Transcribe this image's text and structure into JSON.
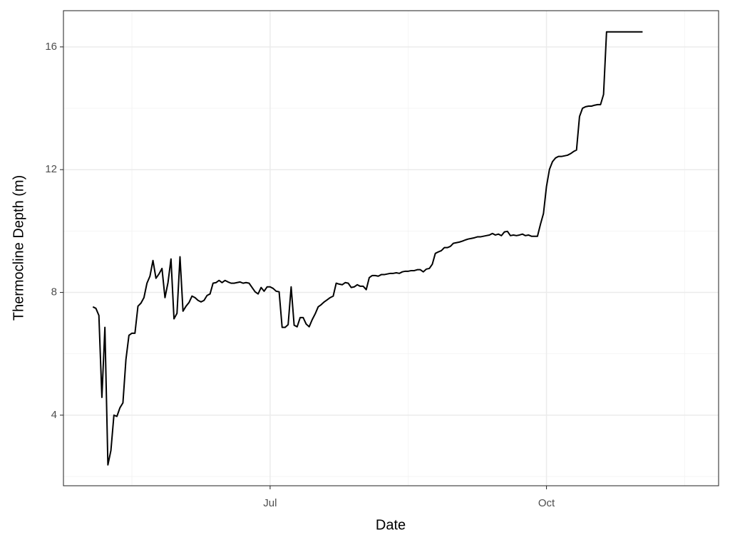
{
  "chart_data": {
    "type": "line",
    "x_label": "Date",
    "y_label": "Thermocline Depth (m)",
    "x": [
      123,
      124,
      125,
      126,
      127,
      128,
      129,
      130,
      131,
      132,
      133,
      134,
      135,
      136,
      137,
      138,
      139,
      140,
      141,
      142,
      143,
      144,
      145,
      146,
      147,
      148,
      149,
      150,
      151,
      152,
      153,
      154,
      155,
      156,
      157,
      158,
      159,
      160,
      161,
      162,
      163,
      164,
      165,
      166,
      167,
      168,
      169,
      170,
      171,
      172,
      173,
      174,
      175,
      176,
      177,
      178,
      179,
      180,
      181,
      182,
      183,
      184,
      185,
      186,
      187,
      188,
      189,
      190,
      191,
      192,
      193,
      194,
      195,
      196,
      197,
      198,
      199,
      200,
      201,
      202,
      203,
      204,
      205,
      206,
      207,
      208,
      209,
      210,
      211,
      212,
      213,
      214,
      215,
      216,
      217,
      218,
      219,
      220,
      221,
      222,
      223,
      224,
      225,
      226,
      227,
      228,
      229,
      230,
      231,
      232,
      233,
      234,
      235,
      236,
      237,
      238,
      239,
      240,
      241,
      242,
      243,
      244,
      245,
      246,
      247,
      248,
      249,
      250,
      251,
      252,
      253,
      254,
      255,
      256,
      257,
      258,
      259,
      260,
      261,
      262,
      263,
      264,
      265,
      266,
      267,
      268,
      269,
      270,
      271,
      272,
      273,
      274,
      275,
      276,
      277,
      278,
      279,
      280,
      281,
      282,
      283,
      284,
      285,
      286,
      287,
      288,
      289,
      290,
      291,
      292,
      293,
      294,
      295,
      296,
      297,
      298,
      299,
      300,
      301,
      302,
      303,
      304,
      305,
      306
    ],
    "series": [
      {
        "color": "#000000",
        "values": [
          7.53,
          7.48,
          7.25,
          4.58,
          6.86,
          2.38,
          2.85,
          4.0,
          3.96,
          4.24,
          4.4,
          5.81,
          6.6,
          6.67,
          6.67,
          7.55,
          7.65,
          7.83,
          8.3,
          8.53,
          9.04,
          8.46,
          8.6,
          8.78,
          7.83,
          8.32,
          9.09,
          7.14,
          7.32,
          9.16,
          7.39,
          7.55,
          7.67,
          7.88,
          7.83,
          7.74,
          7.69,
          7.74,
          7.9,
          7.95,
          8.3,
          8.32,
          8.39,
          8.32,
          8.39,
          8.34,
          8.3,
          8.3,
          8.32,
          8.34,
          8.3,
          8.32,
          8.3,
          8.16,
          8.02,
          7.95,
          8.16,
          8.04,
          8.18,
          8.18,
          8.13,
          8.04,
          8.02,
          6.86,
          6.86,
          6.95,
          8.18,
          6.93,
          6.88,
          7.18,
          7.18,
          6.97,
          6.88,
          7.11,
          7.3,
          7.53,
          7.6,
          7.69,
          7.76,
          7.83,
          7.88,
          8.3,
          8.27,
          8.25,
          8.32,
          8.3,
          8.16,
          8.18,
          8.25,
          8.2,
          8.2,
          8.09,
          8.48,
          8.55,
          8.55,
          8.53,
          8.58,
          8.58,
          8.6,
          8.62,
          8.62,
          8.64,
          8.62,
          8.67,
          8.69,
          8.69,
          8.71,
          8.71,
          8.74,
          8.74,
          8.67,
          8.76,
          8.78,
          8.92,
          9.27,
          9.32,
          9.36,
          9.46,
          9.46,
          9.5,
          9.6,
          9.62,
          9.64,
          9.67,
          9.71,
          9.74,
          9.76,
          9.78,
          9.81,
          9.81,
          9.83,
          9.85,
          9.87,
          9.92,
          9.87,
          9.9,
          9.85,
          9.97,
          9.99,
          9.85,
          9.87,
          9.85,
          9.87,
          9.9,
          9.85,
          9.87,
          9.83,
          9.83,
          9.83,
          10.22,
          10.57,
          11.45,
          12.01,
          12.26,
          12.38,
          12.43,
          12.43,
          12.45,
          12.47,
          12.52,
          12.59,
          12.64,
          13.73,
          14.0,
          14.05,
          14.07,
          14.07,
          14.1,
          14.12,
          14.12,
          14.45,
          16.49,
          16.49,
          16.49,
          16.49,
          16.49,
          16.49,
          16.49,
          16.49,
          16.49,
          16.49,
          16.49,
          16.49,
          16.49
        ]
      }
    ],
    "xlim": [
      113.2,
      331.3
    ],
    "xticks": [
      {
        "value": 182,
        "label": "Jul"
      },
      {
        "value": 274,
        "label": "Oct"
      }
    ],
    "x_minor_ticks": [
      136,
      228,
      320
    ],
    "ylim": [
      1.7,
      17.18
    ],
    "yticks": [
      4,
      8,
      12,
      16
    ],
    "y_minor_ticks": [
      2,
      6,
      10,
      14
    ],
    "grid": true
  }
}
